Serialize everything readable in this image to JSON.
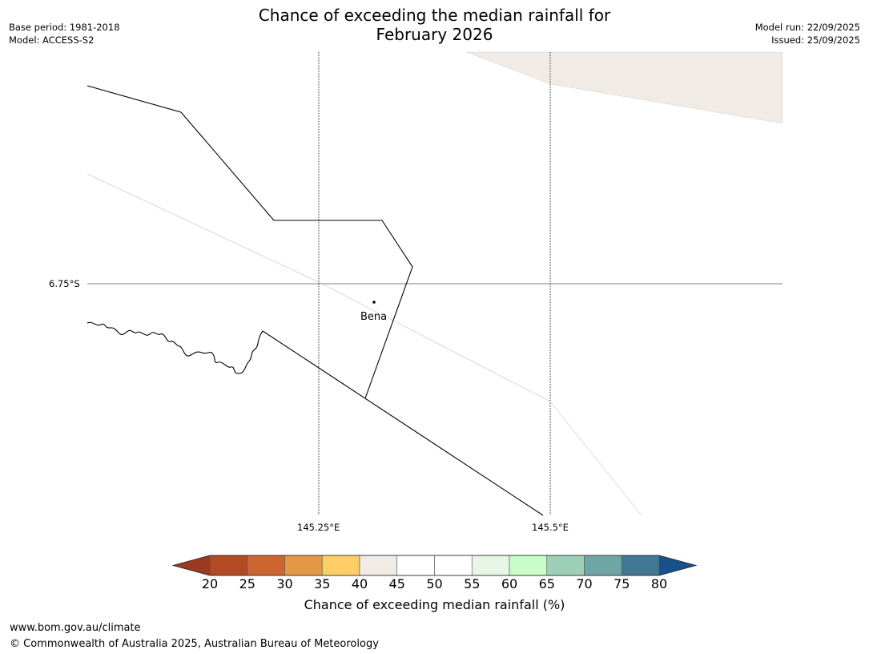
{
  "title": {
    "line1": "Chance of exceeding the median rainfall for",
    "line2": "February 2026"
  },
  "meta": {
    "base_period": "Base period: 1981-2018",
    "model": "Model: ACCESS-S2",
    "model_run": "Model run: 22/09/2025",
    "issued": "Issued: 25/09/2025"
  },
  "map": {
    "lat_labels": [
      "6.75°S"
    ],
    "lon_labels": [
      "145.25°E",
      "145.5°E"
    ],
    "town": "Bena",
    "fill_category": "40-45",
    "fill_color": "#f0ebe5"
  },
  "colorbar": {
    "label": "Chance of exceeding median rainfall (%)",
    "ticks": [
      "20",
      "25",
      "30",
      "35",
      "40",
      "45",
      "50",
      "55",
      "60",
      "65",
      "70",
      "75",
      "80"
    ],
    "under_color": "#9b3a20",
    "over_color": "#17508a",
    "colors": [
      "#b24a24",
      "#cc6530",
      "#e49745",
      "#fdcd67",
      "#f0ebe5",
      "#ffffff",
      "#ffffff",
      "#e8f6e5",
      "#c8fdc9",
      "#9dd0b7",
      "#6ea6a5",
      "#417894"
    ]
  },
  "footer": {
    "url": "www.bom.gov.au/climate",
    "copyright": "© Commonwealth of Australia 2025, Australian Bureau of Meteorology"
  }
}
